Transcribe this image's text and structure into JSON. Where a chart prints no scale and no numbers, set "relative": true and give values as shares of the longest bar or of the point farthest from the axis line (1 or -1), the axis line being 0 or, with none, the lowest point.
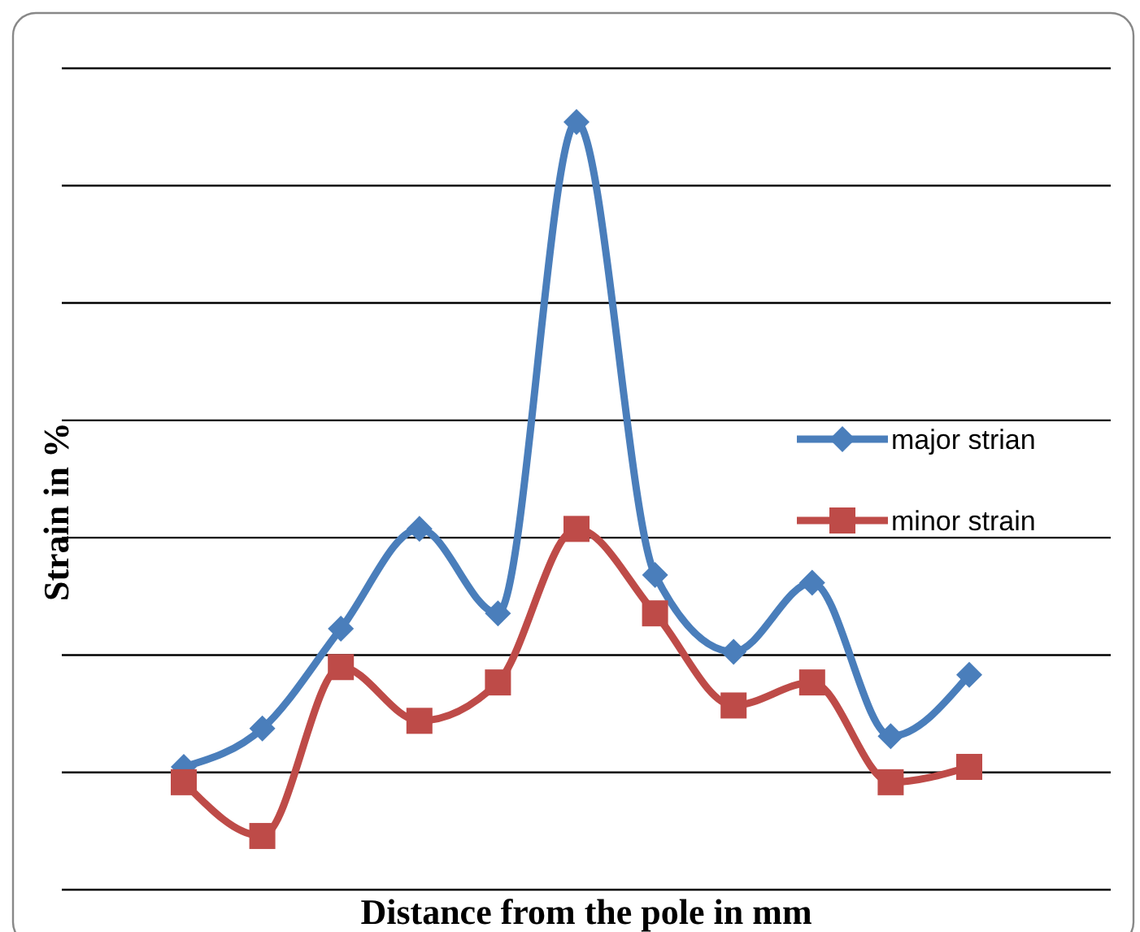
{
  "chart_data": {
    "type": "line",
    "relative": true,
    "xlabel": "Distance from the pole in mm",
    "ylabel": "Strain in %",
    "categories": [
      null,
      null,
      null,
      null,
      null,
      null,
      null,
      null,
      null,
      null,
      null
    ],
    "grid": "y",
    "legend": "right",
    "line_style": "solid",
    "series": [
      {
        "name": "major strian",
        "color": "#4a7ebb",
        "marker": "diamond",
        "values": [
          0.16,
          0.21,
          0.34,
          0.47,
          0.36,
          1.0,
          0.41,
          0.31,
          0.4,
          0.2,
          0.28
        ]
      },
      {
        "name": "minor strain",
        "color": "#be4b48",
        "marker": "square",
        "values": [
          0.14,
          0.07,
          0.29,
          0.22,
          0.27,
          0.47,
          0.36,
          0.24,
          0.27,
          0.14,
          0.16
        ]
      }
    ]
  }
}
